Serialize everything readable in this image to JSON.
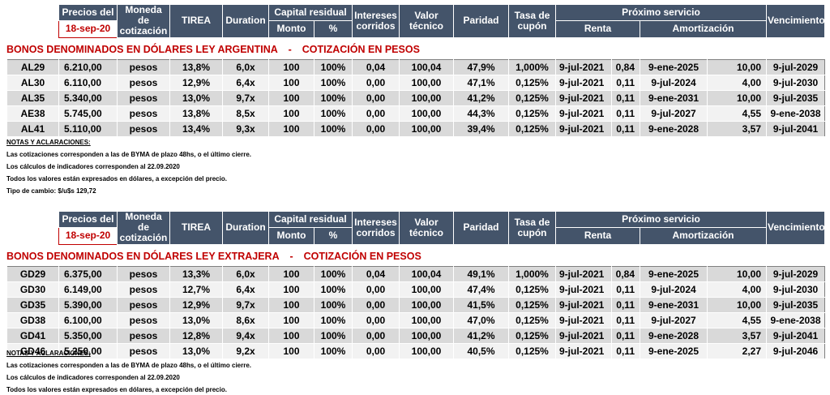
{
  "header": {
    "precios_del": "Precios del",
    "date": "18-sep-20",
    "moneda": [
      "Moneda de",
      "cotización"
    ],
    "tirea": "TIREA",
    "duration": "Duration",
    "capital_residual": "Capital residual",
    "monto": "Monto",
    "pct": "%",
    "intereses": [
      "Intereses",
      "corridos"
    ],
    "valor": [
      "Valor",
      "técnico"
    ],
    "paridad": "Paridad",
    "tasa": [
      "Tasa de",
      "cupón"
    ],
    "proximo": "Próximo servicio",
    "renta": "Renta",
    "amortizacion": "Amortización",
    "vencimiento": "Vencimiento"
  },
  "sections": [
    {
      "title_left": "BONOS DENOMINADOS EN DÓLARES LEY ARGENTINA",
      "title_sep": "-",
      "title_right": "COTIZACIÓN EN PESOS",
      "rows": [
        [
          "AL29",
          "6.210,00",
          "pesos",
          "13,8%",
          "6,0x",
          "100",
          "100%",
          "0,04",
          "100,04",
          "47,9%",
          "1,000%",
          "9-jul-2021",
          "0,84",
          "9-ene-2025",
          "10,00",
          "9-jul-2029"
        ],
        [
          "AL30",
          "6.110,00",
          "pesos",
          "12,9%",
          "6,4x",
          "100",
          "100%",
          "0,00",
          "100,00",
          "47,1%",
          "0,125%",
          "9-jul-2021",
          "0,11",
          "9-jul-2024",
          "4,00",
          "9-jul-2030"
        ],
        [
          "AL35",
          "5.340,00",
          "pesos",
          "13,0%",
          "9,7x",
          "100",
          "100%",
          "0,00",
          "100,00",
          "41,2%",
          "0,125%",
          "9-jul-2021",
          "0,11",
          "9-ene-2031",
          "10,00",
          "9-jul-2035"
        ],
        [
          "AE38",
          "5.745,00",
          "pesos",
          "13,8%",
          "8,5x",
          "100",
          "100%",
          "0,00",
          "100,00",
          "44,3%",
          "0,125%",
          "9-jul-2021",
          "0,11",
          "9-jul-2027",
          "4,55",
          "9-ene-2038"
        ],
        [
          "AL41",
          "5.110,00",
          "pesos",
          "13,4%",
          "9,3x",
          "100",
          "100%",
          "0,00",
          "100,00",
          "39,4%",
          "0,125%",
          "9-jul-2021",
          "0,11",
          "9-ene-2028",
          "3,57",
          "9-jul-2041"
        ]
      ],
      "notes_title": "NOTAS Y ACLARACIONES:",
      "notes": [
        "Las cotizaciones corresponden a las de BYMA de plazo 48hs, o el último cierre.",
        "Los cálculos de indicadores corresponden al 22.09.2020",
        "Todos los valores están expresados en dólares, a excepción del precio.",
        "Tipo de cambio: $/u$s 129,72"
      ]
    },
    {
      "title_left": "BONOS DENOMINADOS EN DÓLARES LEY EXTRAJERA",
      "title_sep": "-",
      "title_right": "COTIZACIÓN EN PESOS",
      "rows": [
        [
          "GD29",
          "6.375,00",
          "pesos",
          "13,3%",
          "6,0x",
          "100",
          "100%",
          "0,04",
          "100,04",
          "49,1%",
          "1,000%",
          "9-jul-2021",
          "0,84",
          "9-ene-2025",
          "10,00",
          "9-jul-2029"
        ],
        [
          "GD30",
          "6.149,00",
          "pesos",
          "12,7%",
          "6,4x",
          "100",
          "100%",
          "0,00",
          "100,00",
          "47,4%",
          "0,125%",
          "9-jul-2021",
          "0,11",
          "9-jul-2024",
          "4,00",
          "9-jul-2030"
        ],
        [
          "GD35",
          "5.390,00",
          "pesos",
          "12,9%",
          "9,7x",
          "100",
          "100%",
          "0,00",
          "100,00",
          "41,5%",
          "0,125%",
          "9-jul-2021",
          "0,11",
          "9-ene-2031",
          "10,00",
          "9-jul-2035"
        ],
        [
          "GD38",
          "6.100,00",
          "pesos",
          "13,0%",
          "8,6x",
          "100",
          "100%",
          "0,00",
          "100,00",
          "47,0%",
          "0,125%",
          "9-jul-2021",
          "0,11",
          "9-jul-2027",
          "4,55",
          "9-ene-2038"
        ],
        [
          "GD41",
          "5.350,00",
          "pesos",
          "12,8%",
          "9,4x",
          "100",
          "100%",
          "0,00",
          "100,00",
          "41,2%",
          "0,125%",
          "9-jul-2021",
          "0,11",
          "9-ene-2028",
          "3,57",
          "9-jul-2041"
        ],
        [
          "GD46",
          "5.250,00",
          "pesos",
          "13,0%",
          "9,2x",
          "100",
          "100%",
          "0,00",
          "100,00",
          "40,5%",
          "0,125%",
          "9-jul-2021",
          "0,11",
          "9-ene-2025",
          "2,27",
          "9-jul-2046"
        ]
      ],
      "notes_title": "NOTAS Y ACLARACIONES:",
      "notes": [
        "Las cotizaciones corresponden a las de BYMA de plazo 48hs, o el último cierre.",
        "Los cálculos de indicadores corresponden al 22.09.2020",
        "Todos los valores están expresados en dólares, a excepción del precio."
      ]
    }
  ]
}
